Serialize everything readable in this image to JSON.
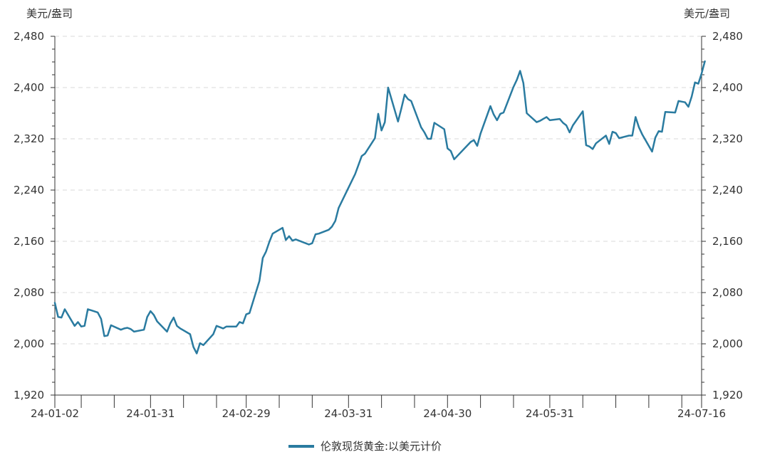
{
  "chart_data": {
    "type": "line",
    "y_unit_left": "美元/盎司",
    "y_unit_right": "美元/盎司",
    "ylim": [
      1920,
      2480
    ],
    "yticks": [
      1920,
      2000,
      2080,
      2160,
      2240,
      2320,
      2400,
      2480
    ],
    "ytick_labels": [
      "1,920",
      "2,000",
      "2,080",
      "2,160",
      "2,240",
      "2,320",
      "2,400",
      "2,480"
    ],
    "xlim": [
      "2024-01-02",
      "2024-07-16"
    ],
    "xtick_labels": [
      "24-01-02",
      "24-01-31",
      "24-02-29",
      "24-03-31",
      "24-04-30",
      "24-05-31",
      "24-07-16"
    ],
    "xtick_label_dates": [
      "2024-01-02",
      "2024-01-31",
      "2024-02-29",
      "2024-03-31",
      "2024-04-30",
      "2024-05-31",
      "2024-07-16"
    ],
    "xtick_mark_dates": [
      "2024-01-02",
      "2024-01-10",
      "2024-01-20",
      "2024-01-31",
      "2024-02-10",
      "2024-02-20",
      "2024-02-29",
      "2024-03-10",
      "2024-03-20",
      "2024-03-31",
      "2024-04-10",
      "2024-04-20",
      "2024-04-30",
      "2024-05-10",
      "2024-05-20",
      "2024-05-31",
      "2024-06-10",
      "2024-06-20",
      "2024-06-30",
      "2024-07-10",
      "2024-07-16"
    ],
    "grid": true,
    "legend_position": "bottom-center",
    "series": [
      {
        "name": "伦敦现货黄金:以美元计价",
        "color": "#2a7ba0",
        "points": [
          [
            "2024-01-02",
            2064
          ],
          [
            "2024-01-03",
            2042
          ],
          [
            "2024-01-04",
            2041
          ],
          [
            "2024-01-05",
            2054
          ],
          [
            "2024-01-08",
            2028
          ],
          [
            "2024-01-09",
            2034
          ],
          [
            "2024-01-10",
            2027
          ],
          [
            "2024-01-11",
            2028
          ],
          [
            "2024-01-12",
            2054
          ],
          [
            "2024-01-15",
            2049
          ],
          [
            "2024-01-16",
            2039
          ],
          [
            "2024-01-17",
            2012
          ],
          [
            "2024-01-18",
            2013
          ],
          [
            "2024-01-19",
            2029
          ],
          [
            "2024-01-22",
            2022
          ],
          [
            "2024-01-23",
            2024
          ],
          [
            "2024-01-24",
            2025
          ],
          [
            "2024-01-25",
            2023
          ],
          [
            "2024-01-26",
            2019
          ],
          [
            "2024-01-29",
            2022
          ],
          [
            "2024-01-30",
            2042
          ],
          [
            "2024-01-31",
            2051
          ],
          [
            "2024-02-01",
            2045
          ],
          [
            "2024-02-02",
            2035
          ],
          [
            "2024-02-05",
            2019
          ],
          [
            "2024-02-06",
            2032
          ],
          [
            "2024-02-07",
            2041
          ],
          [
            "2024-02-08",
            2028
          ],
          [
            "2024-02-09",
            2024
          ],
          [
            "2024-02-12",
            2015
          ],
          [
            "2024-02-13",
            1995
          ],
          [
            "2024-02-14",
            1985
          ],
          [
            "2024-02-15",
            2001
          ],
          [
            "2024-02-16",
            1998
          ],
          [
            "2024-02-19",
            2015
          ],
          [
            "2024-02-20",
            2028
          ],
          [
            "2024-02-21",
            2026
          ],
          [
            "2024-02-22",
            2024
          ],
          [
            "2024-02-23",
            2027
          ],
          [
            "2024-02-26",
            2027
          ],
          [
            "2024-02-27",
            2034
          ],
          [
            "2024-02-28",
            2032
          ],
          [
            "2024-02-29",
            2046
          ],
          [
            "2024-03-01",
            2048
          ],
          [
            "2024-03-04",
            2098
          ],
          [
            "2024-03-05",
            2134
          ],
          [
            "2024-03-06",
            2144
          ],
          [
            "2024-03-07",
            2159
          ],
          [
            "2024-03-08",
            2172
          ],
          [
            "2024-03-11",
            2181
          ],
          [
            "2024-03-12",
            2162
          ],
          [
            "2024-03-13",
            2168
          ],
          [
            "2024-03-14",
            2161
          ],
          [
            "2024-03-15",
            2163
          ],
          [
            "2024-03-18",
            2157
          ],
          [
            "2024-03-19",
            2155
          ],
          [
            "2024-03-20",
            2157
          ],
          [
            "2024-03-21",
            2171
          ],
          [
            "2024-03-22",
            2172
          ],
          [
            "2024-03-25",
            2178
          ],
          [
            "2024-03-26",
            2183
          ],
          [
            "2024-03-27",
            2192
          ],
          [
            "2024-03-28",
            2212
          ],
          [
            "2024-04-02",
            2265
          ],
          [
            "2024-04-03",
            2279
          ],
          [
            "2024-04-04",
            2293
          ],
          [
            "2024-04-05",
            2297
          ],
          [
            "2024-04-08",
            2321
          ],
          [
            "2024-04-09",
            2359
          ],
          [
            "2024-04-10",
            2333
          ],
          [
            "2024-04-11",
            2346
          ],
          [
            "2024-04-12",
            2400
          ],
          [
            "2024-04-15",
            2347
          ],
          [
            "2024-04-16",
            2367
          ],
          [
            "2024-04-17",
            2389
          ],
          [
            "2024-04-18",
            2382
          ],
          [
            "2024-04-19",
            2379
          ],
          [
            "2024-04-22",
            2338
          ],
          [
            "2024-04-23",
            2330
          ],
          [
            "2024-04-24",
            2320
          ],
          [
            "2024-04-25",
            2320
          ],
          [
            "2024-04-26",
            2345
          ],
          [
            "2024-04-29",
            2335
          ],
          [
            "2024-04-30",
            2305
          ],
          [
            "2024-05-01",
            2301
          ],
          [
            "2024-05-02",
            2288
          ],
          [
            "2024-05-07",
            2315
          ],
          [
            "2024-05-08",
            2318
          ],
          [
            "2024-05-09",
            2309
          ],
          [
            "2024-05-10",
            2328
          ],
          [
            "2024-05-13",
            2371
          ],
          [
            "2024-05-14",
            2358
          ],
          [
            "2024-05-15",
            2349
          ],
          [
            "2024-05-16",
            2359
          ],
          [
            "2024-05-17",
            2361
          ],
          [
            "2024-05-20",
            2401
          ],
          [
            "2024-05-21",
            2412
          ],
          [
            "2024-05-22",
            2426
          ],
          [
            "2024-05-23",
            2407
          ],
          [
            "2024-05-24",
            2360
          ],
          [
            "2024-05-27",
            2346
          ],
          [
            "2024-05-28",
            2348
          ],
          [
            "2024-05-29",
            2351
          ],
          [
            "2024-05-30",
            2354
          ],
          [
            "2024-05-31",
            2349
          ],
          [
            "2024-06-03",
            2351
          ],
          [
            "2024-06-04",
            2345
          ],
          [
            "2024-06-05",
            2341
          ],
          [
            "2024-06-06",
            2330
          ],
          [
            "2024-06-07",
            2341
          ],
          [
            "2024-06-10",
            2363
          ],
          [
            "2024-06-11",
            2310
          ],
          [
            "2024-06-12",
            2308
          ],
          [
            "2024-06-13",
            2304
          ],
          [
            "2024-06-14",
            2313
          ],
          [
            "2024-06-17",
            2325
          ],
          [
            "2024-06-18",
            2312
          ],
          [
            "2024-06-19",
            2331
          ],
          [
            "2024-06-20",
            2329
          ],
          [
            "2024-06-21",
            2321
          ],
          [
            "2024-06-24",
            2325
          ],
          [
            "2024-06-25",
            2325
          ],
          [
            "2024-06-26",
            2354
          ],
          [
            "2024-06-27",
            2338
          ],
          [
            "2024-06-28",
            2327
          ],
          [
            "2024-07-01",
            2300
          ],
          [
            "2024-07-02",
            2322
          ],
          [
            "2024-07-03",
            2332
          ],
          [
            "2024-07-04",
            2331
          ],
          [
            "2024-07-05",
            2362
          ],
          [
            "2024-07-08",
            2361
          ],
          [
            "2024-07-09",
            2379
          ],
          [
            "2024-07-10",
            2378
          ],
          [
            "2024-07-11",
            2377
          ],
          [
            "2024-07-12",
            2370
          ],
          [
            "2024-07-13",
            2386
          ],
          [
            "2024-07-14",
            2408
          ],
          [
            "2024-07-15",
            2406
          ],
          [
            "2024-07-16",
            2422
          ],
          [
            "2024-07-17",
            2441
          ]
        ]
      }
    ]
  }
}
